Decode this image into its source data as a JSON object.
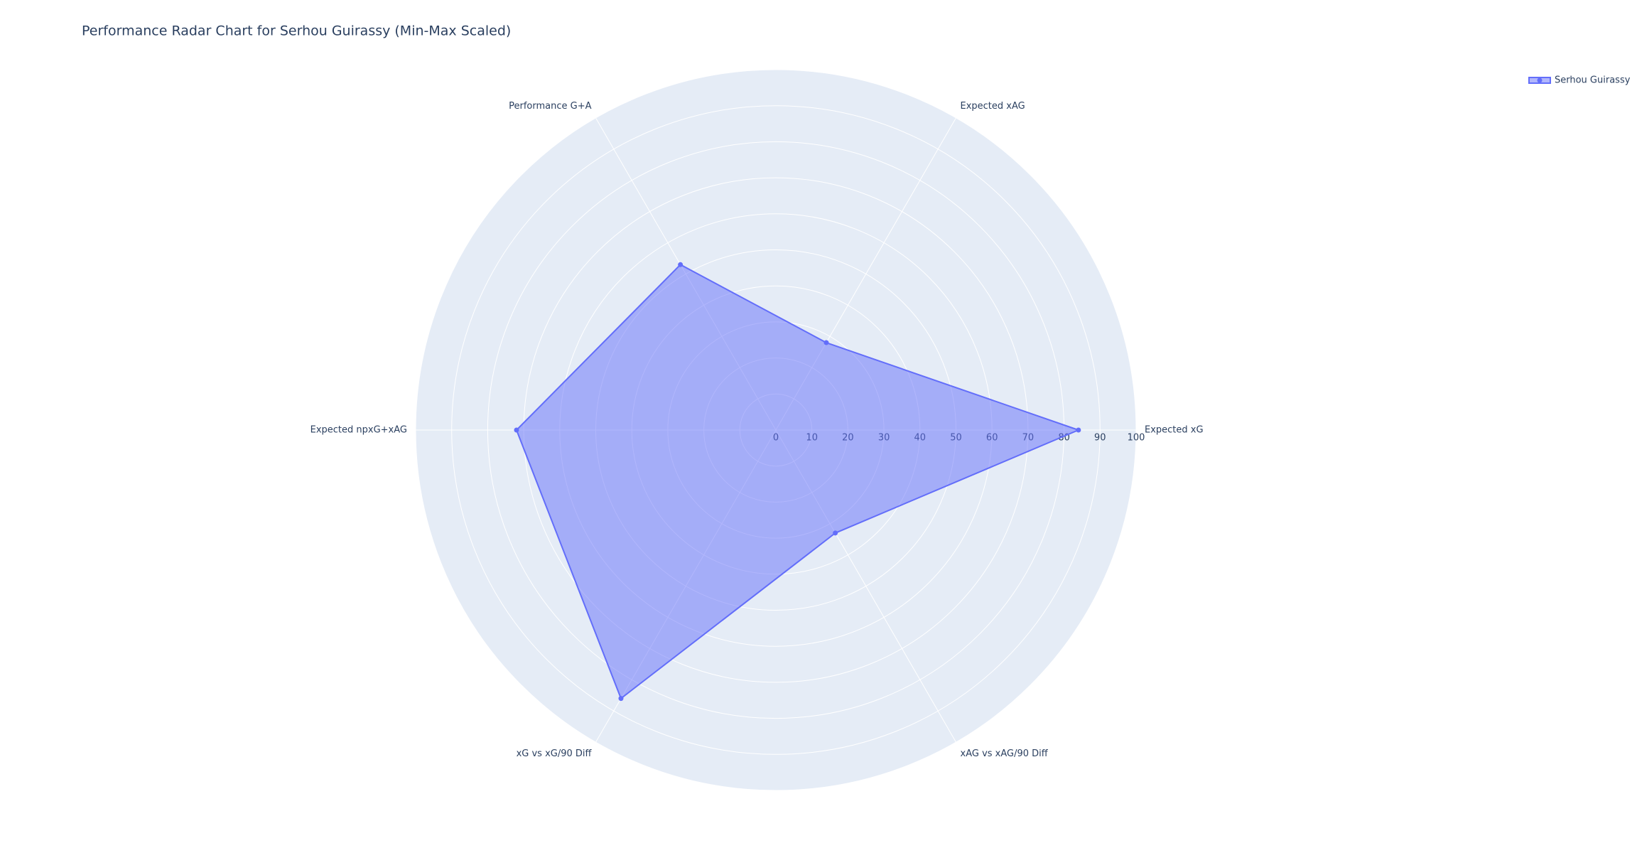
{
  "chart_data": {
    "type": "radar",
    "title": "Performance Radar Chart for Serhou Guirassy (Min-Max Scaled)",
    "categories": [
      "Expected xG",
      "Expected xAG",
      "Performance G+A",
      "Expected npxG+xAG",
      "xG vs xG/90 Diff",
      "xAG vs xAG/90 Diff"
    ],
    "series": [
      {
        "name": "Serhou Guirassy",
        "color": "#636efa",
        "values": [
          84,
          28,
          53,
          72,
          86,
          33
        ]
      }
    ],
    "rlim": [
      0,
      100
    ],
    "rticks": [
      0,
      10,
      20,
      30,
      40,
      50,
      60,
      70,
      80,
      90,
      100
    ],
    "grid": true,
    "legend": "top-right"
  }
}
